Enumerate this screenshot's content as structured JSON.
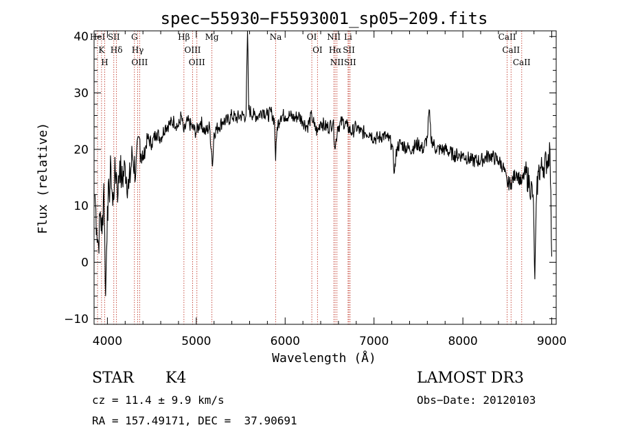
{
  "chart_data": {
    "type": "line",
    "title": "spec−55930−F5593001_sp05−209.fits",
    "xlabel": "Wavelength (Å)",
    "ylabel": "Flux (relative)",
    "xlim": [
      3850,
      9050
    ],
    "ylim": [
      -11,
      41
    ],
    "xticks": [
      4000,
      5000,
      6000,
      7000,
      8000,
      9000
    ],
    "yticks": [
      -10,
      0,
      10,
      20,
      30,
      40
    ],
    "grid": false,
    "legend": "none",
    "series": [
      {
        "name": "flux",
        "color": "#000000",
        "points": [
          [
            3860,
            12
          ],
          [
            3880,
            6
          ],
          [
            3900,
            3
          ],
          [
            3920,
            9
          ],
          [
            3940,
            5
          ],
          [
            3960,
            14
          ],
          [
            3980,
            -6
          ],
          [
            4000,
            10
          ],
          [
            4020,
            12
          ],
          [
            4040,
            17
          ],
          [
            4060,
            10
          ],
          [
            4080,
            15
          ],
          [
            4100,
            16
          ],
          [
            4120,
            12
          ],
          [
            4140,
            18
          ],
          [
            4160,
            14
          ],
          [
            4200,
            17
          ],
          [
            4240,
            13
          ],
          [
            4280,
            19
          ],
          [
            4320,
            16
          ],
          [
            4360,
            22
          ],
          [
            4400,
            18
          ],
          [
            4450,
            22
          ],
          [
            4500,
            21
          ],
          [
            4550,
            23
          ],
          [
            4600,
            22
          ],
          [
            4650,
            24
          ],
          [
            4700,
            24.5
          ],
          [
            4750,
            25
          ],
          [
            4800,
            24
          ],
          [
            4830,
            26
          ],
          [
            4861,
            23
          ],
          [
            4900,
            25
          ],
          [
            4950,
            24
          ],
          [
            5000,
            23
          ],
          [
            5050,
            25
          ],
          [
            5100,
            23
          ],
          [
            5150,
            24
          ],
          [
            5175,
            19
          ],
          [
            5183,
            17
          ],
          [
            5200,
            23
          ],
          [
            5250,
            24
          ],
          [
            5300,
            25
          ],
          [
            5350,
            25
          ],
          [
            5400,
            26
          ],
          [
            5450,
            25.5
          ],
          [
            5500,
            26
          ],
          [
            5560,
            26
          ],
          [
            5577,
            41
          ],
          [
            5590,
            27
          ],
          [
            5650,
            26
          ],
          [
            5700,
            26
          ],
          [
            5750,
            27
          ],
          [
            5800,
            26
          ],
          [
            5850,
            26.5
          ],
          [
            5880,
            25
          ],
          [
            5893,
            18
          ],
          [
            5910,
            24
          ],
          [
            5950,
            26
          ],
          [
            6000,
            26
          ],
          [
            6050,
            26
          ],
          [
            6100,
            25.5
          ],
          [
            6150,
            26
          ],
          [
            6200,
            25
          ],
          [
            6250,
            24
          ],
          [
            6300,
            26
          ],
          [
            6330,
            24
          ],
          [
            6364,
            23
          ],
          [
            6400,
            25
          ],
          [
            6450,
            24
          ],
          [
            6500,
            24
          ],
          [
            6540,
            25
          ],
          [
            6563,
            20
          ],
          [
            6590,
            24
          ],
          [
            6650,
            25
          ],
          [
            6700,
            24
          ],
          [
            6750,
            23
          ],
          [
            6800,
            24
          ],
          [
            6850,
            23
          ],
          [
            6900,
            23
          ],
          [
            6950,
            23
          ],
          [
            7000,
            22
          ],
          [
            7050,
            22
          ],
          [
            7100,
            22.5
          ],
          [
            7150,
            22
          ],
          [
            7200,
            21
          ],
          [
            7230,
            16
          ],
          [
            7260,
            20.5
          ],
          [
            7300,
            21
          ],
          [
            7400,
            20
          ],
          [
            7500,
            21
          ],
          [
            7550,
            20
          ],
          [
            7600,
            22
          ],
          [
            7620,
            27
          ],
          [
            7640,
            22
          ],
          [
            7700,
            20
          ],
          [
            7800,
            20
          ],
          [
            7900,
            19
          ],
          [
            8000,
            19
          ],
          [
            8100,
            18
          ],
          [
            8200,
            18
          ],
          [
            8300,
            19
          ],
          [
            8400,
            18
          ],
          [
            8450,
            17
          ],
          [
            8498,
            14
          ],
          [
            8542,
            14
          ],
          [
            8600,
            16
          ],
          [
            8662,
            14
          ],
          [
            8700,
            16
          ],
          [
            8750,
            14
          ],
          [
            8790,
            12
          ],
          [
            8810,
            -3
          ],
          [
            8830,
            12
          ],
          [
            8850,
            16
          ],
          [
            8900,
            17
          ],
          [
            8950,
            18
          ],
          [
            8980,
            20
          ],
          [
            9000,
            1
          ]
        ]
      }
    ],
    "lines": [
      {
        "wavelength": 3889,
        "labels": [
          "HeI"
        ]
      },
      {
        "wavelength": 3934,
        "labels": [
          "K"
        ]
      },
      {
        "wavelength": 3970,
        "labels": [
          "H"
        ]
      },
      {
        "wavelength": 4072,
        "labels": [
          "SII"
        ]
      },
      {
        "wavelength": 4102,
        "labels": [
          "Hδ"
        ]
      },
      {
        "wavelength": 4304,
        "labels": [
          "G"
        ]
      },
      {
        "wavelength": 4341,
        "labels": [
          "Hγ"
        ]
      },
      {
        "wavelength": 4363,
        "labels": [
          "OIII"
        ]
      },
      {
        "wavelength": 4861,
        "labels": [
          "Hβ"
        ]
      },
      {
        "wavelength": 4959,
        "labels": [
          "OIII"
        ]
      },
      {
        "wavelength": 5007,
        "labels": [
          "OIII"
        ]
      },
      {
        "wavelength": 5176,
        "labels": [
          "Mg"
        ]
      },
      {
        "wavelength": 5893,
        "labels": [
          "Na"
        ]
      },
      {
        "wavelength": 6300,
        "labels": [
          "OI"
        ]
      },
      {
        "wavelength": 6364,
        "labels": [
          "OI"
        ]
      },
      {
        "wavelength": 6548,
        "labels": [
          "NII"
        ]
      },
      {
        "wavelength": 6563,
        "labels": [
          "Hα"
        ]
      },
      {
        "wavelength": 6583,
        "labels": [
          "NII"
        ]
      },
      {
        "wavelength": 6708,
        "labels": [
          "Li"
        ]
      },
      {
        "wavelength": 6717,
        "labels": [
          "SII"
        ]
      },
      {
        "wavelength": 6731,
        "labels": [
          "SII"
        ]
      },
      {
        "wavelength": 8498,
        "labels": [
          "CaII"
        ]
      },
      {
        "wavelength": 8542,
        "labels": [
          "CaII"
        ]
      },
      {
        "wavelength": 8662,
        "labels": [
          "CaII"
        ]
      }
    ]
  },
  "info": {
    "obj_class": "STAR",
    "subclass": "K4",
    "survey": "LAMOST DR3",
    "cz": "cz = 11.4 ± 9.9 km/s",
    "obs_date": "Obs−Date: 20120103",
    "radec": "RA = 157.49171, DEC =  37.90691"
  }
}
